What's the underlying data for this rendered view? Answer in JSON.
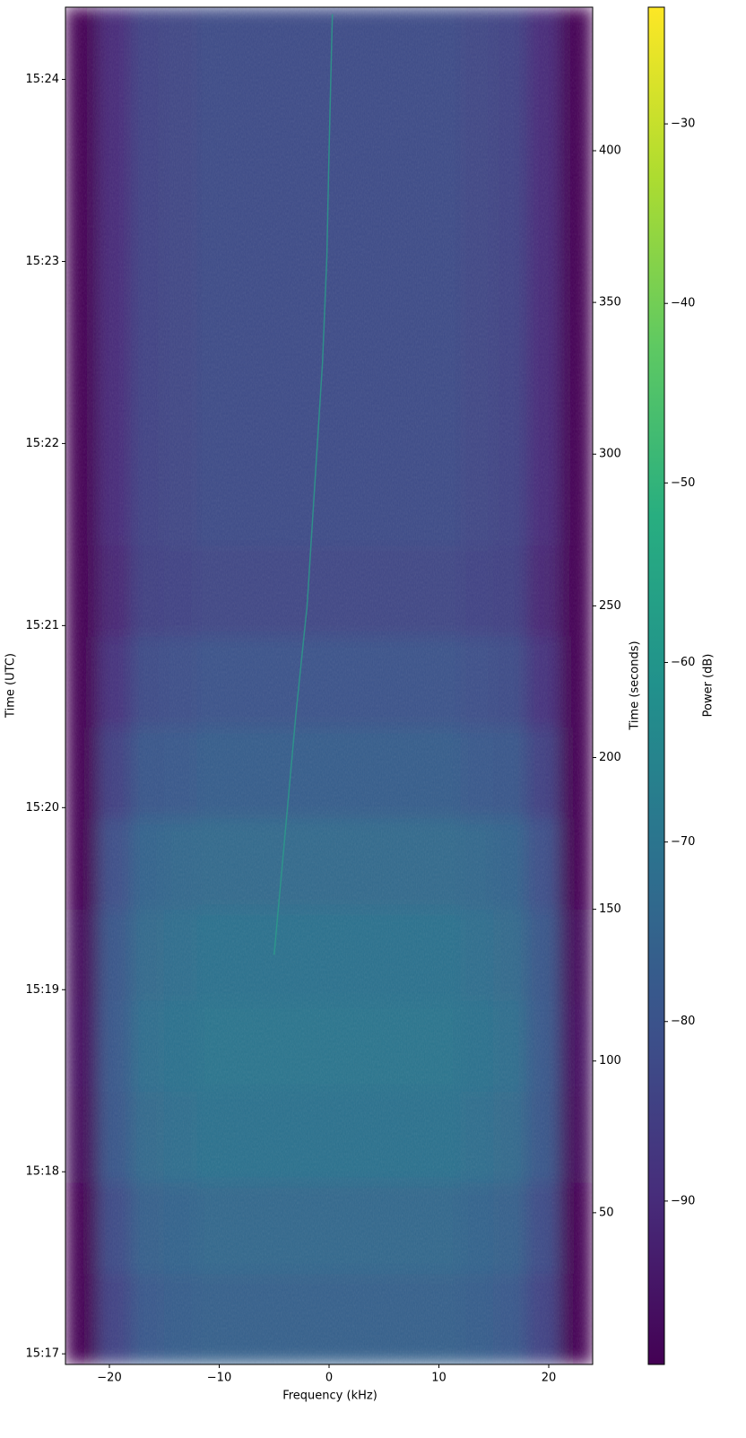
{
  "chart_data": {
    "type": "heatmap",
    "xlabel": "Frequency (kHz)",
    "ylabel": "Time (UTC)",
    "y2label": "Time (seconds)",
    "colorbar_label": "Power (dB)",
    "colormap": "viridis",
    "xlim": [
      -24,
      24
    ],
    "xticks": [
      {
        "value": -20,
        "label": "−20"
      },
      {
        "value": -10,
        "label": "−10"
      },
      0,
      10,
      20
    ],
    "ylim": [
      0,
      447.3
    ],
    "yticks": [
      {
        "value": 3.5,
        "label": "15:17"
      },
      {
        "value": 63.5,
        "label": "15:18"
      },
      {
        "value": 123.5,
        "label": "15:19"
      },
      {
        "value": 183.5,
        "label": "15:20"
      },
      {
        "value": 243.5,
        "label": "15:21"
      },
      {
        "value": 303.5,
        "label": "15:22"
      },
      {
        "value": 363.5,
        "label": "15:23"
      },
      {
        "value": 423.5,
        "label": "15:24"
      }
    ],
    "y2lim": [
      0,
      447.3
    ],
    "y2ticks": [
      50,
      100,
      150,
      200,
      250,
      300,
      350,
      400
    ],
    "clim": [
      -99.1,
      -23.5
    ],
    "cticks": [
      {
        "value": -30,
        "label": "−30"
      },
      {
        "value": -40,
        "label": "−40"
      },
      {
        "value": -50,
        "label": "−50"
      },
      {
        "value": -60,
        "label": "−60"
      },
      {
        "value": -70,
        "label": "−70"
      },
      {
        "value": -80,
        "label": "−80"
      },
      {
        "value": -90,
        "label": "−90"
      }
    ],
    "freq_edges": [
      -24,
      -21,
      -18,
      -15,
      -12,
      -9,
      -6,
      -3,
      0,
      3,
      6,
      9,
      12,
      15,
      18,
      21,
      24
    ],
    "time_edges": [
      0,
      30,
      60,
      90,
      120,
      150,
      180,
      210,
      240,
      270,
      300,
      330,
      360,
      390,
      420,
      447.3
    ],
    "z": [
      [
        -99,
        -84,
        -78,
        -77,
        -76,
        -76,
        -76,
        -76,
        -76,
        -76,
        -76,
        -76,
        -77,
        -78,
        -84,
        -99
      ],
      [
        -99,
        -82,
        -76,
        -75,
        -74,
        -74,
        -74,
        -74,
        -74,
        -74,
        -74,
        -74,
        -75,
        -76,
        -82,
        -99
      ],
      [
        -97,
        -79,
        -73,
        -72,
        -71,
        -71,
        -71,
        -71,
        -71,
        -71,
        -71,
        -71,
        -72,
        -73,
        -79,
        -97
      ],
      [
        -96,
        -78,
        -72,
        -71,
        -70,
        -70,
        -70,
        -70,
        -70,
        -70,
        -70,
        -70,
        -71,
        -72,
        -78,
        -96
      ],
      [
        -97,
        -79,
        -73,
        -72,
        -71,
        -71,
        -71,
        -71,
        -71,
        -71,
        -71,
        -71,
        -72,
        -73,
        -79,
        -97
      ],
      [
        -99,
        -81,
        -75,
        -74,
        -73,
        -73,
        -73,
        -73,
        -73,
        -73,
        -73,
        -73,
        -74,
        -75,
        -81,
        -99
      ],
      [
        -99,
        -85,
        -79,
        -78,
        -77,
        -77,
        -77,
        -77,
        -77,
        -77,
        -77,
        -77,
        -78,
        -79,
        -85,
        -99
      ],
      [
        -99,
        -88,
        -82,
        -81,
        -80,
        -80,
        -80,
        -80,
        -80,
        -80,
        -80,
        -80,
        -81,
        -82,
        -88,
        -99
      ],
      [
        -99,
        -91,
        -85,
        -84,
        -83,
        -83,
        -83,
        -83,
        -83,
        -83,
        -83,
        -83,
        -84,
        -85,
        -91,
        -99
      ],
      [
        -99,
        -90,
        -84,
        -83,
        -82,
        -82,
        -82,
        -82,
        -82,
        -82,
        -82,
        -82,
        -83,
        -84,
        -90,
        -99
      ],
      [
        -99,
        -90,
        -84,
        -83,
        -82,
        -82,
        -82,
        -82,
        -82,
        -82,
        -82,
        -82,
        -83,
        -84,
        -90,
        -99
      ],
      [
        -99,
        -90,
        -84,
        -83,
        -82,
        -82,
        -82,
        -82,
        -82,
        -82,
        -82,
        -82,
        -83,
        -84,
        -90,
        -99
      ],
      [
        -99,
        -90,
        -84,
        -83,
        -82,
        -82,
        -82,
        -82,
        -82,
        -82,
        -82,
        -82,
        -83,
        -84,
        -90,
        -99
      ],
      [
        -99,
        -90,
        -84,
        -83,
        -82,
        -82,
        -82,
        -82,
        -82,
        -82,
        -82,
        -82,
        -83,
        -84,
        -90,
        -99
      ],
      [
        -99,
        -90,
        -84,
        -83,
        -82,
        -82,
        -82,
        -82,
        -82,
        -82,
        -82,
        -82,
        -83,
        -84,
        -90,
        -99
      ]
    ],
    "trace": {
      "x": [
        -5.0,
        -4.0,
        -3.0,
        -2.0,
        -1.3,
        -0.6,
        -0.2,
        0.0,
        0.2,
        0.3
      ],
      "y": [
        135,
        175,
        215,
        250,
        290,
        330,
        365,
        400,
        430,
        445
      ],
      "color": "#2a9d8a"
    }
  }
}
